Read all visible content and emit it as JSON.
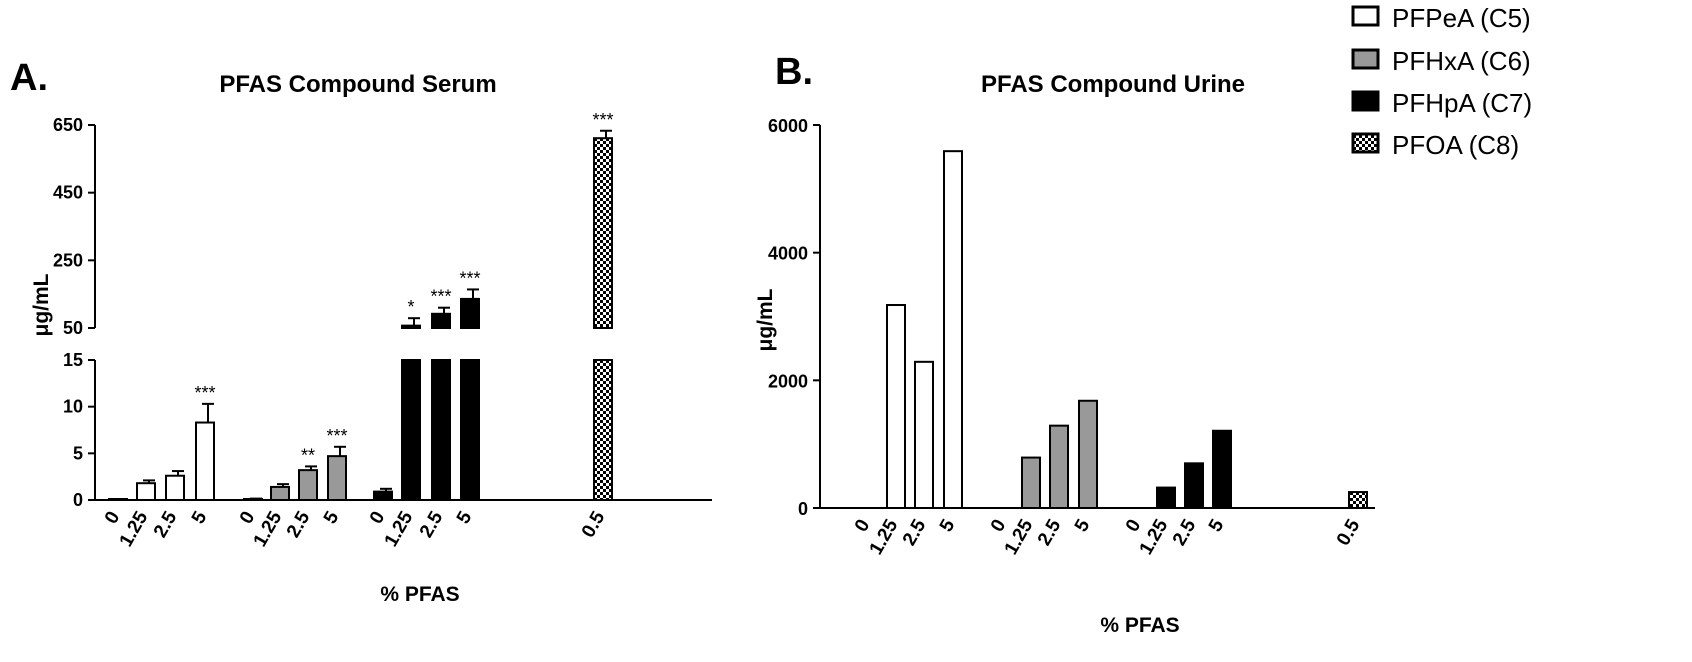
{
  "colors": {
    "PFPeA": "#ffffff",
    "PFHxA": "#999999",
    "PFHpA": "#000000",
    "PFOA": "checkered"
  },
  "legend": [
    {
      "label": "PFPeA (C5)",
      "fill": "PFPeA"
    },
    {
      "label": "PFHxA (C6)",
      "fill": "PFHxA"
    },
    {
      "label": "PFHpA (C7)",
      "fill": "PFHpA"
    },
    {
      "label": "PFOA (C8)",
      "fill": "PFOA"
    }
  ],
  "chart_data": [
    {
      "panel": "A.",
      "type": "bar",
      "title": "PFAS Compound Serum",
      "xlabel": "% PFAS",
      "ylabel": "μg/mL",
      "y_broken_axis": true,
      "lower_ylim": [
        0,
        15
      ],
      "lower_yticks": [
        0,
        5,
        10,
        15
      ],
      "upper_ylim": [
        50,
        650
      ],
      "upper_yticks": [
        50,
        250,
        450,
        650
      ],
      "groups": [
        {
          "series": "PFPeA",
          "categories": [
            "0",
            "1.25",
            "2.5",
            "5"
          ],
          "values": [
            0,
            1.8,
            2.6,
            8.3
          ],
          "errors": [
            0,
            0.3,
            0.5,
            2.0
          ],
          "significance": [
            "",
            "",
            "",
            "***"
          ]
        },
        {
          "series": "PFHxA",
          "categories": [
            "0",
            "1.25",
            "2.5",
            "5"
          ],
          "values": [
            0.1,
            1.4,
            3.2,
            4.7
          ],
          "errors": [
            0.05,
            0.3,
            0.4,
            1.0
          ],
          "significance": [
            "",
            "",
            "**",
            "***"
          ]
        },
        {
          "series": "PFHpA",
          "categories": [
            "0",
            "1.25",
            "2.5",
            "5"
          ],
          "values": [
            0.9,
            57,
            92,
            136
          ],
          "errors": [
            0.3,
            22,
            18,
            28
          ],
          "significance": [
            "",
            "*",
            "***",
            "***"
          ]
        },
        {
          "series": "PFOA",
          "categories": [
            "0.5"
          ],
          "values": [
            611
          ],
          "errors": [
            22
          ],
          "significance": [
            "***"
          ]
        }
      ]
    },
    {
      "panel": "B.",
      "type": "bar",
      "title": "PFAS Compound Urine",
      "xlabel": "% PFAS",
      "ylabel": "μg/mL",
      "ylim": [
        0,
        6000
      ],
      "yticks": [
        0,
        2000,
        4000,
        6000
      ],
      "groups": [
        {
          "series": "PFPeA",
          "categories": [
            "0",
            "1.25",
            "2.5",
            "5"
          ],
          "values": [
            0,
            3180,
            2290,
            5590
          ]
        },
        {
          "series": "PFHxA",
          "categories": [
            "0",
            "1.25",
            "2.5",
            "5"
          ],
          "values": [
            0,
            790,
            1290,
            1680
          ]
        },
        {
          "series": "PFHpA",
          "categories": [
            "0",
            "1.25",
            "2.5",
            "5"
          ],
          "values": [
            0,
            320,
            700,
            1210
          ]
        },
        {
          "series": "PFOA",
          "categories": [
            "0.5"
          ],
          "values": [
            250
          ]
        }
      ]
    }
  ]
}
